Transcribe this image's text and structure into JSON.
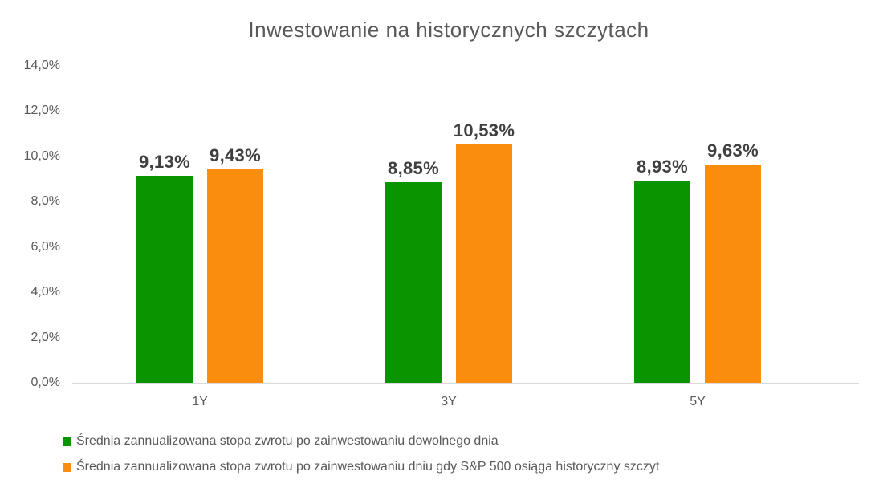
{
  "chart_data": {
    "type": "bar",
    "title": "Inwestowanie na historycznych szczytach",
    "categories": [
      "1Y",
      "3Y",
      "5Y"
    ],
    "series": [
      {
        "name": "Średnia zannualizowana stopa zwrotu po zainwestowaniu dowolnego dnia",
        "color": "#0a9400",
        "values": [
          9.13,
          8.85,
          8.93
        ],
        "labels": [
          "9,13%",
          "8,85%",
          "8,93%"
        ]
      },
      {
        "name": "Średnia zannualizowana stopa zwrotu po zainwestowaniu dniu gdy S&P 500 osiąga historyczny szczyt",
        "color": "#fa8d0e",
        "values": [
          9.43,
          10.53,
          9.63
        ],
        "labels": [
          "9,43%",
          "10,53%",
          "9,63%"
        ]
      }
    ],
    "ylim": [
      0,
      14
    ],
    "yticks": [
      {
        "value": 0,
        "label": "0,0%"
      },
      {
        "value": 2,
        "label": "2,0%"
      },
      {
        "value": 4,
        "label": "4,0%"
      },
      {
        "value": 6,
        "label": "6,0%"
      },
      {
        "value": 8,
        "label": "8,0%"
      },
      {
        "value": 10,
        "label": "10,0%"
      },
      {
        "value": 12,
        "label": "12,0%"
      },
      {
        "value": 14,
        "label": "14,0%"
      }
    ],
    "grid": false,
    "legend_position": "bottom-left",
    "colors": {
      "title_text": "#595959",
      "axis_text": "#595959",
      "data_label": "#404040",
      "axis_line": "#d9d9d9",
      "background": "#ffffff"
    }
  }
}
